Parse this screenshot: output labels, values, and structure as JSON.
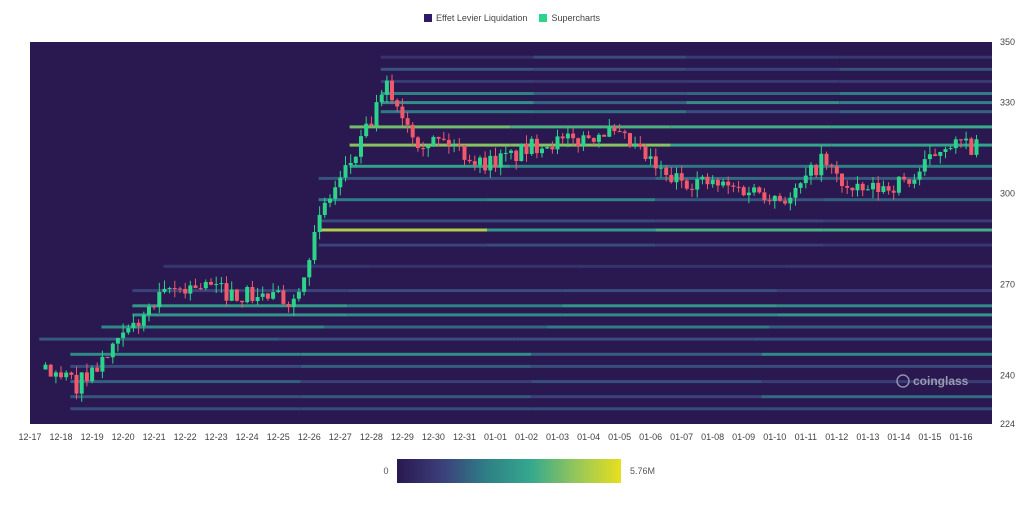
{
  "chart_data": {
    "type": "heatmap",
    "subtype": "liquidation-heatmap-with-candlesticks",
    "legend": [
      {
        "label": "Effet Levier Liquidation",
        "color": "#2d1b69"
      },
      {
        "label": "Supercharts",
        "color": "#2bd48a"
      }
    ],
    "x_tick_labels": [
      "12-17",
      "12-18",
      "12-19",
      "12-20",
      "12-21",
      "12-22",
      "12-23",
      "12-24",
      "12-25",
      "12-26",
      "12-27",
      "12-28",
      "12-29",
      "12-30",
      "12-31",
      "01-01",
      "01-02",
      "01-03",
      "01-04",
      "01-05",
      "01-06",
      "01-07",
      "01-08",
      "01-09",
      "01-10",
      "01-11",
      "01-12",
      "01-13",
      "01-14",
      "01-15",
      "01-16"
    ],
    "y_tick_labels": [
      "350",
      "330",
      "300",
      "270",
      "240",
      "224"
    ],
    "ylim": [
      224,
      350
    ],
    "price_path": [
      {
        "date": "12-17",
        "price": 242
      },
      {
        "date": "12-18",
        "price": 237
      },
      {
        "date": "12-19",
        "price": 246
      },
      {
        "date": "12-20",
        "price": 258
      },
      {
        "date": "12-21",
        "price": 268
      },
      {
        "date": "12-22",
        "price": 270
      },
      {
        "date": "12-23",
        "price": 267
      },
      {
        "date": "12-24",
        "price": 266
      },
      {
        "date": "12-25",
        "price": 265
      },
      {
        "date": "12-26",
        "price": 296
      },
      {
        "date": "12-27",
        "price": 313
      },
      {
        "date": "12-28",
        "price": 335
      },
      {
        "date": "12-29",
        "price": 318
      },
      {
        "date": "12-30",
        "price": 317
      },
      {
        "date": "12-31",
        "price": 310
      },
      {
        "date": "01-01",
        "price": 312
      },
      {
        "date": "01-02",
        "price": 317
      },
      {
        "date": "01-03",
        "price": 317
      },
      {
        "date": "01-04",
        "price": 321
      },
      {
        "date": "01-05",
        "price": 315
      },
      {
        "date": "01-06",
        "price": 305
      },
      {
        "date": "01-07",
        "price": 304
      },
      {
        "date": "01-08",
        "price": 302
      },
      {
        "date": "01-09",
        "price": 301
      },
      {
        "date": "01-10",
        "price": 298
      },
      {
        "date": "01-11",
        "price": 311
      },
      {
        "date": "01-12",
        "price": 300
      },
      {
        "date": "01-13",
        "price": 302
      },
      {
        "date": "01-14",
        "price": 305
      },
      {
        "date": "01-15",
        "price": 317
      },
      {
        "date": "01-16",
        "price": 315
      }
    ],
    "liquidation_bands": [
      {
        "price": 345,
        "intensity": 0.25
      },
      {
        "price": 341,
        "intensity": 0.3
      },
      {
        "price": 337,
        "intensity": 0.2
      },
      {
        "price": 333,
        "intensity": 0.45
      },
      {
        "price": 330,
        "intensity": 0.55
      },
      {
        "price": 327,
        "intensity": 0.4
      },
      {
        "price": 322,
        "intensity": 0.75
      },
      {
        "price": 316,
        "intensity": 0.8
      },
      {
        "price": 309,
        "intensity": 0.6
      },
      {
        "price": 305,
        "intensity": 0.35
      },
      {
        "price": 298,
        "intensity": 0.45
      },
      {
        "price": 291,
        "intensity": 0.3
      },
      {
        "price": 288,
        "intensity": 0.9
      },
      {
        "price": 283,
        "intensity": 0.25
      },
      {
        "price": 276,
        "intensity": 0.2
      },
      {
        "price": 268,
        "intensity": 0.3
      },
      {
        "price": 263,
        "intensity": 0.55
      },
      {
        "price": 260,
        "intensity": 0.6
      },
      {
        "price": 256,
        "intensity": 0.45
      },
      {
        "price": 252,
        "intensity": 0.35
      },
      {
        "price": 247,
        "intensity": 0.5
      },
      {
        "price": 243,
        "intensity": 0.4
      },
      {
        "price": 238,
        "intensity": 0.3
      },
      {
        "price": 233,
        "intensity": 0.35
      },
      {
        "price": 229,
        "intensity": 0.25
      }
    ],
    "colorscale": {
      "min_label": "0",
      "max_label": "5.76M",
      "stops": [
        "#2a1850",
        "#3b3f7a",
        "#2e7f86",
        "#35a98d",
        "#96c65a",
        "#e6df1d"
      ]
    },
    "grid": false,
    "legend_position": "top-center"
  },
  "watermark": {
    "text": "coinglass"
  }
}
